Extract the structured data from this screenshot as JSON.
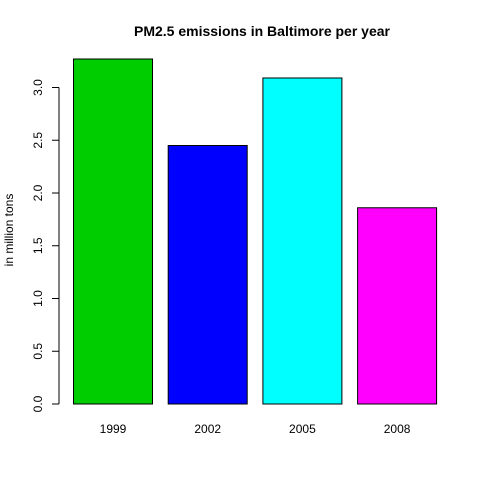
{
  "chart_data": {
    "type": "bar",
    "title": "PM2.5 emissions in Baltimore per year",
    "xlabel": "",
    "ylabel": "in million tons",
    "categories": [
      "1999",
      "2002",
      "2005",
      "2008"
    ],
    "values": [
      3.27,
      2.45,
      3.09,
      1.86
    ],
    "colors": [
      "#00CD00",
      "#0000FF",
      "#00FFFF",
      "#FF00FF"
    ],
    "yticks": [
      "0.0",
      "0.5",
      "1.0",
      "1.5",
      "2.0",
      "2.5",
      "3.0"
    ],
    "ylim": [
      0,
      3.27
    ],
    "grid": false,
    "legend": "none"
  }
}
